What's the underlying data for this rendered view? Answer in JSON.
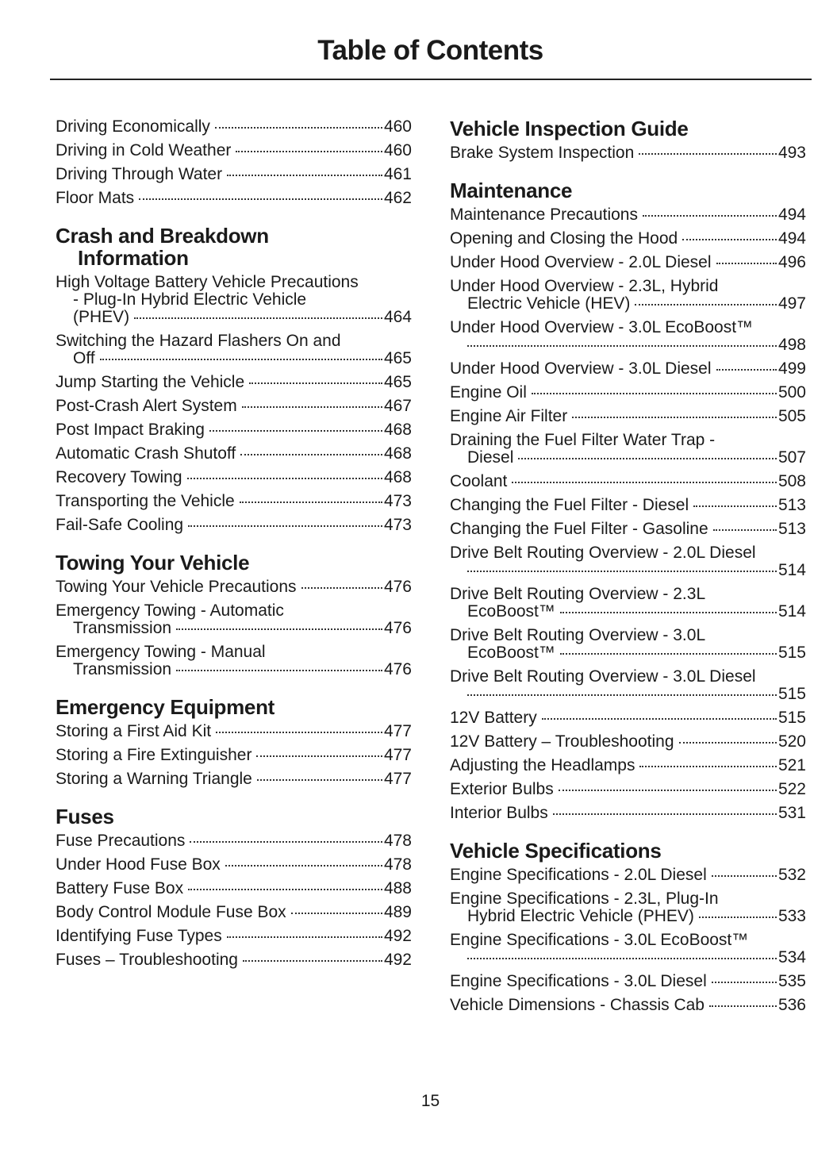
{
  "title": "Table of Contents",
  "page_number": "15",
  "columns": [
    [
      {
        "type": "entry",
        "lines": [
          "Driving Economically"
        ],
        "page": "460"
      },
      {
        "type": "entry",
        "lines": [
          "Driving in Cold Weather"
        ],
        "page": "460"
      },
      {
        "type": "entry",
        "lines": [
          "Driving Through Water"
        ],
        "page": "461"
      },
      {
        "type": "entry",
        "lines": [
          "Floor Mats"
        ],
        "page": "462"
      },
      {
        "type": "heading",
        "lines": [
          "Crash and Breakdown",
          "Information"
        ]
      },
      {
        "type": "entry",
        "lines": [
          "High Voltage Battery Vehicle Precautions",
          "- Plug-In Hybrid Electric Vehicle",
          "(PHEV)"
        ],
        "page": "464"
      },
      {
        "type": "entry",
        "lines": [
          "Switching the Hazard Flashers On and",
          "Off"
        ],
        "page": "465"
      },
      {
        "type": "entry",
        "lines": [
          "Jump Starting the Vehicle"
        ],
        "page": "465"
      },
      {
        "type": "entry",
        "lines": [
          "Post-Crash Alert System"
        ],
        "page": "467"
      },
      {
        "type": "entry",
        "lines": [
          "Post Impact Braking"
        ],
        "page": "468"
      },
      {
        "type": "entry",
        "lines": [
          "Automatic Crash Shutoff"
        ],
        "page": "468"
      },
      {
        "type": "entry",
        "lines": [
          "Recovery Towing"
        ],
        "page": "468"
      },
      {
        "type": "entry",
        "lines": [
          "Transporting the Vehicle"
        ],
        "page": "473"
      },
      {
        "type": "entry",
        "lines": [
          "Fail-Safe Cooling"
        ],
        "page": "473"
      },
      {
        "type": "heading",
        "lines": [
          "Towing Your Vehicle"
        ]
      },
      {
        "type": "entry",
        "lines": [
          "Towing Your Vehicle Precautions"
        ],
        "page": "476"
      },
      {
        "type": "entry",
        "lines": [
          "Emergency Towing - Automatic",
          "Transmission"
        ],
        "page": "476"
      },
      {
        "type": "entry",
        "lines": [
          "Emergency Towing - Manual",
          "Transmission"
        ],
        "page": "476"
      },
      {
        "type": "heading",
        "lines": [
          "Emergency Equipment"
        ]
      },
      {
        "type": "entry",
        "lines": [
          "Storing a First Aid Kit"
        ],
        "page": "477"
      },
      {
        "type": "entry",
        "lines": [
          "Storing a Fire Extinguisher"
        ],
        "page": "477"
      },
      {
        "type": "entry",
        "lines": [
          "Storing a Warning Triangle"
        ],
        "page": "477"
      },
      {
        "type": "heading",
        "lines": [
          "Fuses"
        ]
      },
      {
        "type": "entry",
        "lines": [
          "Fuse Precautions"
        ],
        "page": "478"
      },
      {
        "type": "entry",
        "lines": [
          "Under Hood Fuse Box"
        ],
        "page": "478"
      },
      {
        "type": "entry",
        "lines": [
          "Battery Fuse Box"
        ],
        "page": "488"
      },
      {
        "type": "entry",
        "lines": [
          "Body Control Module Fuse Box"
        ],
        "page": "489"
      },
      {
        "type": "entry",
        "lines": [
          "Identifying Fuse Types"
        ],
        "page": "492"
      },
      {
        "type": "entry",
        "lines": [
          "Fuses – Troubleshooting"
        ],
        "page": "492"
      }
    ],
    [
      {
        "type": "heading",
        "lines": [
          "Vehicle Inspection Guide"
        ]
      },
      {
        "type": "entry",
        "lines": [
          "Brake System Inspection"
        ],
        "page": "493"
      },
      {
        "type": "heading",
        "lines": [
          "Maintenance"
        ]
      },
      {
        "type": "entry",
        "lines": [
          "Maintenance Precautions"
        ],
        "page": "494"
      },
      {
        "type": "entry",
        "lines": [
          "Opening and Closing the Hood"
        ],
        "page": "494"
      },
      {
        "type": "entry",
        "lines": [
          "Under Hood Overview - 2.0L Diesel"
        ],
        "page": "496"
      },
      {
        "type": "entry",
        "lines": [
          "Under Hood Overview - 2.3L, Hybrid",
          "Electric Vehicle (HEV)"
        ],
        "page": "497"
      },
      {
        "type": "entry",
        "lines": [
          "Under Hood Overview - 3.0L EcoBoost™",
          ""
        ],
        "page": "498"
      },
      {
        "type": "entry",
        "lines": [
          "Under Hood Overview - 3.0L Diesel"
        ],
        "page": "499"
      },
      {
        "type": "entry",
        "lines": [
          "Engine Oil"
        ],
        "page": "500"
      },
      {
        "type": "entry",
        "lines": [
          "Engine Air Filter"
        ],
        "page": "505"
      },
      {
        "type": "entry",
        "lines": [
          "Draining the Fuel Filter Water Trap -",
          "Diesel"
        ],
        "page": "507"
      },
      {
        "type": "entry",
        "lines": [
          "Coolant"
        ],
        "page": "508"
      },
      {
        "type": "entry",
        "lines": [
          "Changing the Fuel Filter - Diesel"
        ],
        "page": "513"
      },
      {
        "type": "entry",
        "lines": [
          "Changing the Fuel Filter - Gasoline"
        ],
        "page": "513"
      },
      {
        "type": "entry",
        "lines": [
          "Drive Belt Routing Overview - 2.0L Diesel",
          ""
        ],
        "page": "514"
      },
      {
        "type": "entry",
        "lines": [
          "Drive Belt Routing Overview - 2.3L",
          "EcoBoost™"
        ],
        "page": "514"
      },
      {
        "type": "entry",
        "lines": [
          "Drive Belt Routing Overview - 3.0L",
          "EcoBoost™"
        ],
        "page": "515"
      },
      {
        "type": "entry",
        "lines": [
          "Drive Belt Routing Overview - 3.0L Diesel",
          ""
        ],
        "page": "515"
      },
      {
        "type": "entry",
        "lines": [
          "12V Battery"
        ],
        "page": "515"
      },
      {
        "type": "entry",
        "lines": [
          "12V Battery – Troubleshooting"
        ],
        "page": "520"
      },
      {
        "type": "entry",
        "lines": [
          "Adjusting the Headlamps"
        ],
        "page": "521"
      },
      {
        "type": "entry",
        "lines": [
          "Exterior Bulbs"
        ],
        "page": "522"
      },
      {
        "type": "entry",
        "lines": [
          "Interior Bulbs"
        ],
        "page": "531"
      },
      {
        "type": "heading",
        "lines": [
          "Vehicle Specifications"
        ]
      },
      {
        "type": "entry",
        "lines": [
          "Engine Specifications - 2.0L Diesel"
        ],
        "page": "532"
      },
      {
        "type": "entry",
        "lines": [
          "Engine Specifications - 2.3L, Plug-In",
          "Hybrid Electric Vehicle (PHEV)"
        ],
        "page": "533"
      },
      {
        "type": "entry",
        "lines": [
          "Engine Specifications - 3.0L EcoBoost™",
          ""
        ],
        "page": "534"
      },
      {
        "type": "entry",
        "lines": [
          "Engine Specifications - 3.0L Diesel"
        ],
        "page": "535"
      },
      {
        "type": "entry",
        "lines": [
          "Vehicle Dimensions - Chassis Cab"
        ],
        "page": "536"
      }
    ]
  ]
}
